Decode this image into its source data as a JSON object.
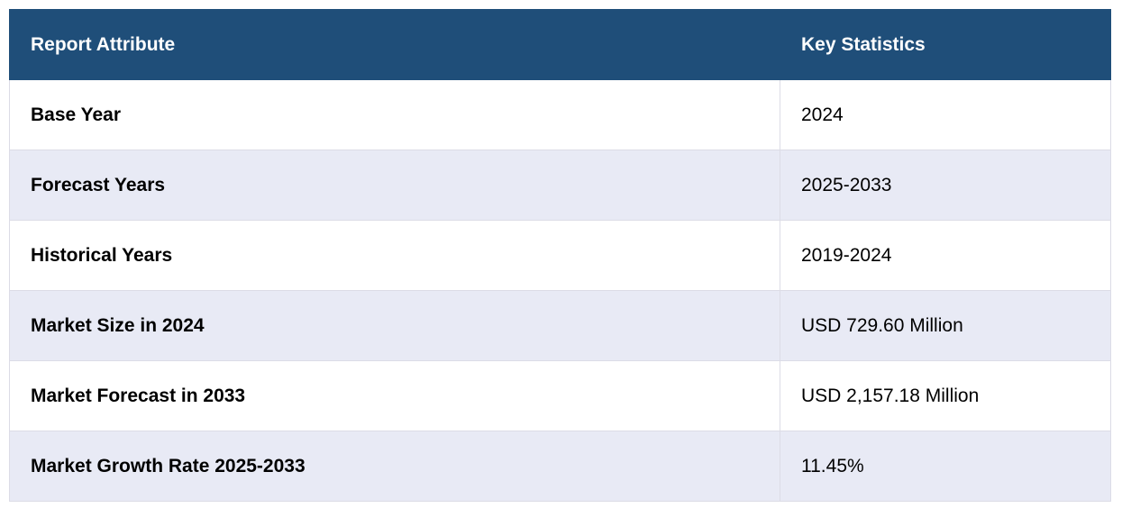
{
  "table": {
    "headers": [
      "Report Attribute",
      "Key Statistics"
    ],
    "rows": [
      {
        "attribute": "Base Year",
        "value": "2024"
      },
      {
        "attribute": "Forecast Years",
        "value": "2025-2033"
      },
      {
        "attribute": "Historical Years",
        "value": "2019-2024"
      },
      {
        "attribute": "Market Size in 2024",
        "value": "USD 729.60 Million"
      },
      {
        "attribute": "Market Forecast in 2033",
        "value": "USD 2,157.18 Million"
      },
      {
        "attribute": "Market Growth Rate 2025-2033",
        "value": "11.45%"
      }
    ]
  },
  "colors": {
    "header_bg": "#1f4e79",
    "header_text": "#ffffff",
    "row_alt_bg": "#e8eaf5",
    "row_bg": "#ffffff"
  }
}
